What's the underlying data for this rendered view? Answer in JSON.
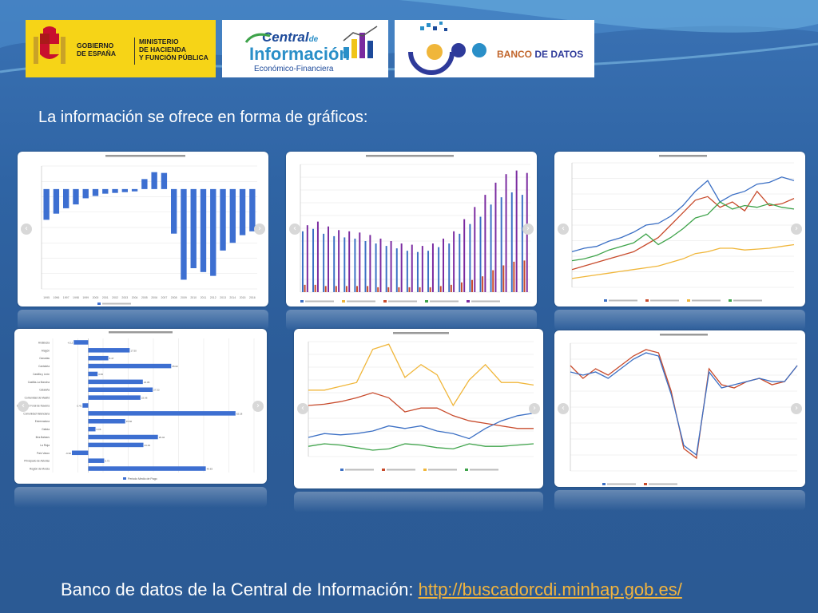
{
  "logos": {
    "gobierno": {
      "line1": "GOBIERNO",
      "line2": "DE ESPAÑA"
    },
    "ministerio": {
      "line1": "MINISTERIO",
      "line2": "DE HACIENDA",
      "line3": "Y FUNCIÓN PÚBLICA"
    },
    "central": {
      "line1": "Central",
      "line1b": "de",
      "line2": "Información",
      "line3": "Económico-Financiera"
    },
    "banco": {
      "text1": "BANCO",
      "text2": " DE DATOS"
    }
  },
  "heading": "La información se ofrece en forma de gráficos:",
  "footer": {
    "text": "Banco de datos de la Central de Información: ",
    "link": "http://buscadorcdi.minhap.gob.es/"
  },
  "colors": {
    "bar": "#3d6fd1",
    "blue": "#3b6fc4",
    "red": "#c84b2c",
    "yellow": "#f0b63a",
    "green": "#3ea34a",
    "purple": "#7a2aa0"
  },
  "icons": {
    "prev": "chevron-left-icon",
    "next": "chevron-right-icon"
  },
  "chart_data": [
    {
      "type": "bar",
      "years": [
        "1995",
        "1996",
        "1997",
        "1998",
        "1999",
        "2000",
        "2001",
        "2002",
        "2003",
        "2004",
        "2005",
        "2006",
        "2007",
        "2008",
        "2009",
        "2010",
        "2011",
        "2012",
        "2013",
        "2014",
        "2015",
        "2016"
      ],
      "values": [
        -40000,
        -32000,
        -25000,
        -20000,
        -12000,
        -9000,
        -6000,
        -5000,
        -4000,
        -3000,
        13000,
        22000,
        21000,
        -58000,
        -118000,
        -103000,
        -108000,
        -113000,
        -80000,
        -70000,
        -60000,
        -55000
      ],
      "ylim": [
        -130000,
        30000
      ]
    },
    {
      "type": "bar",
      "series_count": 3,
      "values_a": [
        50,
        52,
        48,
        46,
        45,
        44,
        42,
        40,
        38,
        36,
        34,
        33,
        34,
        37,
        40,
        48,
        56,
        62,
        72,
        78,
        82,
        80
      ],
      "values_b": [
        6,
        6,
        5,
        5,
        5,
        5,
        5,
        4,
        4,
        4,
        4,
        4,
        4,
        5,
        6,
        8,
        10,
        13,
        18,
        22,
        25,
        26
      ],
      "values_c": [
        55,
        58,
        54,
        51,
        50,
        49,
        47,
        44,
        42,
        40,
        39,
        38,
        40,
        44,
        50,
        60,
        70,
        80,
        90,
        97,
        100,
        98
      ],
      "ylim": [
        0,
        105
      ]
    },
    {
      "type": "line",
      "blue": [
        40,
        44,
        46,
        52,
        56,
        62,
        70,
        72,
        80,
        92,
        108,
        120,
        96,
        104,
        108,
        116,
        118,
        124,
        120
      ],
      "red": [
        20,
        24,
        28,
        32,
        36,
        40,
        48,
        56,
        70,
        84,
        98,
        102,
        90,
        96,
        86,
        108,
        92,
        94,
        100
      ],
      "green": [
        30,
        32,
        36,
        42,
        46,
        50,
        60,
        48,
        56,
        66,
        78,
        82,
        96,
        88,
        92,
        90,
        94,
        90,
        88
      ],
      "yellow": [
        10,
        12,
        14,
        16,
        18,
        20,
        22,
        24,
        28,
        32,
        38,
        40,
        44,
        44,
        42,
        43,
        44,
        46,
        48
      ],
      "ylim": [
        0,
        140
      ]
    },
    {
      "type": "bar",
      "orientation": "horizontal",
      "categories": [
        "Andalucía",
        "Aragón",
        "Canarias",
        "Cantabria",
        "Castilla y León",
        "Castilla-La Mancha",
        "Cataluña",
        "Comunidad de Madrid",
        "Comunidad Foral de Navarra",
        "Comunidad Valenciana",
        "Extremadura",
        "Galicia",
        "Illes Balears",
        "La Rioja",
        "País Vasco",
        "Principado de Asturias",
        "Región de Murcia"
      ],
      "values": [
        -6.12,
        17.5,
        8.47,
        35.02,
        3.95,
        23.05,
        27.22,
        22.06,
        -2.41,
        62.18,
        15.6,
        3.06,
        29.42,
        23.29,
        -6.9,
        6.72,
        49.63
      ],
      "legend": "Periodo Medio de Pago",
      "xlim": [
        -15,
        70
      ]
    },
    {
      "type": "line",
      "yellow": [
        52,
        52,
        55,
        58,
        84,
        88,
        62,
        72,
        64,
        40,
        60,
        72,
        58,
        58,
        56
      ],
      "red": [
        40,
        41,
        43,
        46,
        50,
        46,
        35,
        38,
        38,
        32,
        28,
        26,
        24,
        22,
        22
      ],
      "blue": [
        15,
        18,
        17,
        18,
        20,
        24,
        22,
        24,
        20,
        18,
        14,
        22,
        28,
        32,
        34
      ],
      "green": [
        8,
        10,
        9,
        7,
        5,
        6,
        10,
        9,
        7,
        6,
        10,
        8,
        8,
        9,
        10
      ],
      "ylim": [
        0,
        90
      ]
    },
    {
      "type": "line",
      "red": [
        8,
        4,
        7,
        5,
        8,
        11,
        13,
        12,
        0,
        -18,
        -21,
        7,
        2,
        1,
        3,
        4,
        2,
        3,
        8
      ],
      "blue": [
        6,
        5,
        6,
        4,
        7,
        10,
        12,
        11,
        -1,
        -17,
        -20,
        6,
        1,
        2,
        3,
        4,
        3,
        3,
        8
      ],
      "ylim": [
        -25,
        15
      ]
    }
  ]
}
